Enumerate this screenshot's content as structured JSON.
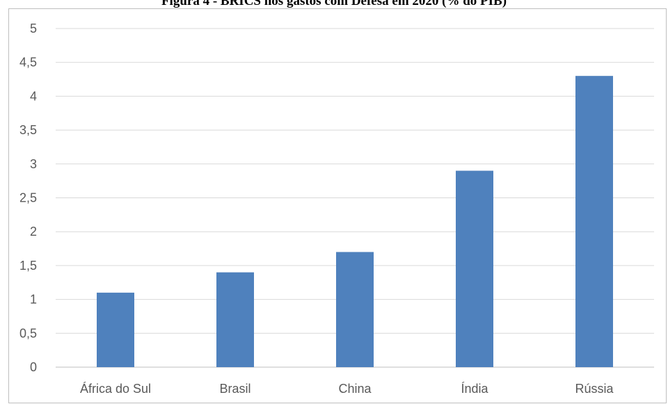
{
  "chart_data": {
    "type": "bar",
    "title": "Figura 4 - BRICS nos gastos com Defesa em 2020 (% do PIB)",
    "categories": [
      "África do Sul",
      "Brasil",
      "China",
      "Índia",
      "Rússia"
    ],
    "values": [
      1.1,
      1.4,
      1.7,
      2.9,
      4.3
    ],
    "ylim": [
      0,
      5
    ],
    "yticks": [
      "0",
      "0,5",
      "1",
      "1,5",
      "2",
      "2,5",
      "3",
      "3,5",
      "4",
      "4,5",
      "5"
    ],
    "grid": true,
    "colors": {
      "bar": "#4f81bd",
      "grid": "#d9d9d9",
      "axis": "#bfbfbf"
    }
  }
}
